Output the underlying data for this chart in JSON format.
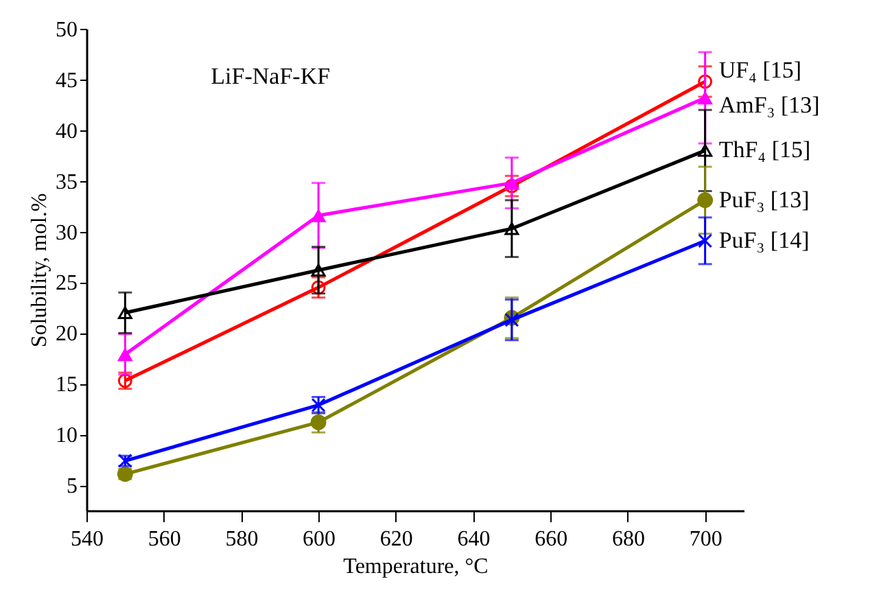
{
  "chart_data": {
    "type": "line",
    "xlabel": "Temperature, °C",
    "ylabel": "Solubility, mol.%",
    "annotations": [
      "LiF-NaF-KF"
    ],
    "x": [
      550,
      600,
      650,
      700
    ],
    "xlim": [
      540,
      710
    ],
    "xticks": [
      540,
      560,
      580,
      600,
      620,
      640,
      660,
      680,
      700
    ],
    "ylim": [
      2.5,
      50
    ],
    "yticks": [
      5,
      10,
      15,
      20,
      25,
      30,
      35,
      40,
      45,
      50
    ],
    "grid": false,
    "series": [
      {
        "name": "UF₄ [15]",
        "color": "#ff0000",
        "marker": "circle",
        "values": [
          15.3,
          24.5,
          34.5,
          44.8
        ],
        "errors": [
          0.8,
          1,
          1,
          1.5
        ]
      },
      {
        "name": "AmF₃ [13]",
        "color": "#ff00ff",
        "marker": "triangle",
        "values": [
          17.9,
          31.6,
          34.8,
          43.2
        ],
        "errors": [
          2,
          3.2,
          2.5,
          4.5
        ]
      },
      {
        "name": "ThF₄ [15]",
        "color": "#000000",
        "marker": "triangle",
        "values": [
          22,
          26.2,
          30.3,
          38
        ],
        "errors": [
          2,
          2.3,
          2.8,
          4
        ]
      },
      {
        "name": "PuF₃ [13]",
        "color": "#808000",
        "marker": "circle",
        "values": [
          6.1,
          11.2,
          21.5,
          33.1
        ],
        "errors": [
          0.5,
          1,
          2,
          3.3
        ]
      },
      {
        "name": "PuF₃ [14]",
        "color": "#0000ff",
        "marker": "cross",
        "values": [
          7.4,
          12.9,
          21.3,
          29.1
        ],
        "errors": [
          0.5,
          0.8,
          2,
          2.3
        ]
      }
    ]
  }
}
